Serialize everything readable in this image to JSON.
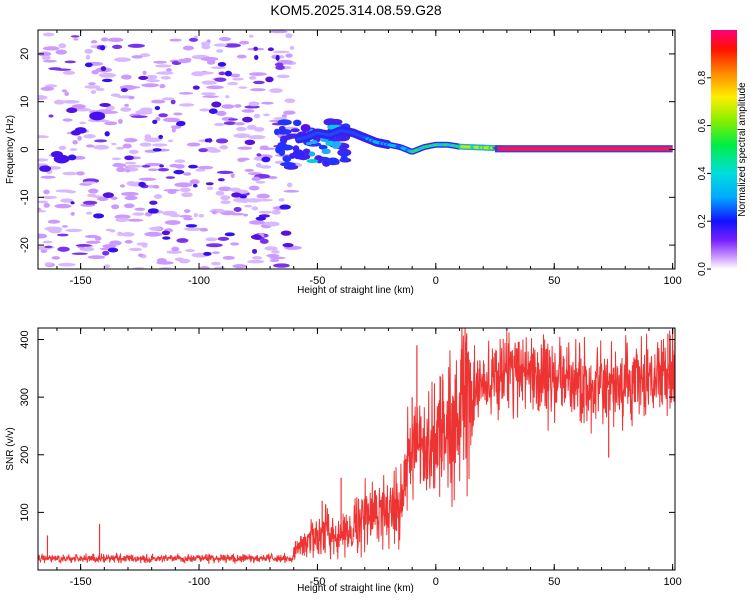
{
  "title": "KOM5.2025.314.08.59.G28",
  "chart_data": [
    {
      "type": "heatmap",
      "name": "spectrogram",
      "xlabel": "Height of straight line (km)",
      "ylabel": "Frequency (Hz)",
      "xlim": [
        -168,
        101
      ],
      "ylim": [
        -25,
        25
      ],
      "xticks": [
        -150,
        -100,
        -50,
        0,
        50,
        100
      ],
      "yticks": [
        -20,
        -10,
        0,
        10,
        20
      ],
      "colorbar": {
        "label": "Normalized spectral amplitude",
        "range": [
          0,
          1
        ],
        "ticks": [
          0.0,
          0.2,
          0.4,
          0.6,
          0.8
        ]
      },
      "trace_points": [
        [
          -60,
          2
        ],
        [
          -55,
          2.5
        ],
        [
          -50,
          3.5
        ],
        [
          -45,
          3
        ],
        [
          -40,
          4
        ],
        [
          -35,
          3.5
        ],
        [
          -30,
          2.5
        ],
        [
          -25,
          1.5
        ],
        [
          -20,
          1
        ],
        [
          -15,
          0.5
        ],
        [
          -10,
          -0.5
        ],
        [
          -5,
          0.5
        ],
        [
          0,
          1
        ],
        [
          5,
          1
        ],
        [
          10,
          0.6
        ],
        [
          20,
          0.4
        ],
        [
          30,
          0.2
        ],
        [
          100,
          0.2
        ]
      ]
    },
    {
      "type": "line",
      "name": "snr",
      "xlabel": "Height of straight line (km)",
      "ylabel": "SNR (v/v)",
      "xlim": [
        -168,
        101
      ],
      "ylim": [
        0,
        420
      ],
      "xticks": [
        -150,
        -100,
        -50,
        0,
        50,
        100
      ],
      "yticks": [
        100,
        200,
        300,
        400
      ],
      "color": "#ee3333",
      "envelope": {
        "x": [
          -168,
          -150,
          -100,
          -70,
          -60,
          -55,
          -50,
          -45,
          -40,
          -35,
          -30,
          -20,
          -15,
          -10,
          -5,
          0,
          5,
          10,
          20,
          30,
          40,
          50,
          60,
          70,
          80,
          90,
          100
        ],
        "y": [
          20,
          18,
          18,
          20,
          30,
          50,
          60,
          70,
          55,
          80,
          90,
          110,
          120,
          220,
          190,
          230,
          250,
          280,
          320,
          350,
          345,
          330,
          325,
          310,
          320,
          330,
          350
        ]
      },
      "spikes": [
        [
          -164,
          60
        ],
        [
          -142,
          80
        ],
        [
          -48,
          120
        ],
        [
          -40,
          160
        ],
        [
          -10,
          300
        ],
        [
          -8,
          390
        ],
        [
          2,
          335
        ],
        [
          3,
          330
        ],
        [
          34,
          385
        ],
        [
          73,
          195
        ],
        [
          98,
          410
        ],
        [
          100,
          420
        ]
      ]
    }
  ]
}
